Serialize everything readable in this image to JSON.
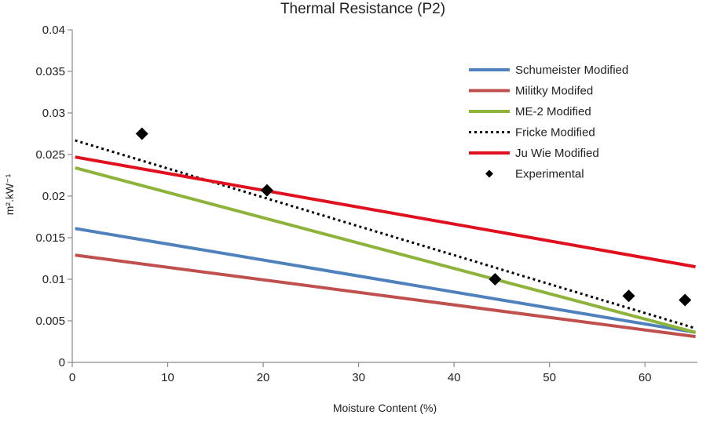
{
  "chart_data": {
    "type": "line",
    "title": "Thermal Resistance  (P2)",
    "xlabel": "Moisture Content  (%)",
    "ylabel": "m².kW⁻¹",
    "xlim": [
      0,
      65.5
    ],
    "ylim": [
      0,
      0.04
    ],
    "x_ticks": [
      0,
      10,
      20,
      30,
      40,
      50,
      60
    ],
    "y_ticks": [
      0,
      0.005,
      0.01,
      0.015,
      0.02,
      0.025,
      0.03,
      0.035,
      0.04
    ],
    "x_tick_labels": [
      "0",
      "10",
      "20",
      "30",
      "40",
      "50",
      "60"
    ],
    "y_tick_labels": [
      "0",
      "0.005",
      "0.01",
      "0.015",
      "0.02",
      "0.025",
      "0.03",
      "0.035",
      "0.04"
    ],
    "grid": false,
    "legend_position": "top-right",
    "series": [
      {
        "name": "Schumeister Modified",
        "style": "line",
        "color": "#4f81bd",
        "dash": "solid",
        "x": [
          0.3,
          65.3
        ],
        "y": [
          0.0161,
          0.0036
        ]
      },
      {
        "name": "Militky Modifed",
        "style": "line",
        "color": "#c0504d",
        "dash": "solid",
        "x": [
          0.3,
          65.3
        ],
        "y": [
          0.0129,
          0.0031
        ]
      },
      {
        "name": "ME-2 Modified",
        "style": "line",
        "color": "#8db33a",
        "dash": "solid",
        "x": [
          0.3,
          65.3
        ],
        "y": [
          0.0234,
          0.0036
        ]
      },
      {
        "name": "Fricke Modified",
        "style": "line",
        "color": "#000000",
        "dash": "dotted",
        "x": [
          0.3,
          65.3
        ],
        "y": [
          0.0267,
          0.0041
        ]
      },
      {
        "name": "Ju Wie Modified",
        "style": "line",
        "color": "#e0101e",
        "dash": "solid",
        "x": [
          0.3,
          65.3
        ],
        "y": [
          0.0247,
          0.0115
        ]
      },
      {
        "name": "Experimental",
        "style": "marker",
        "color": "#000000",
        "marker": "diamond",
        "x": [
          7.3,
          20.4,
          44.3,
          58.3,
          64.2
        ],
        "y": [
          0.0275,
          0.0207,
          0.01,
          0.008,
          0.0075
        ]
      }
    ]
  }
}
